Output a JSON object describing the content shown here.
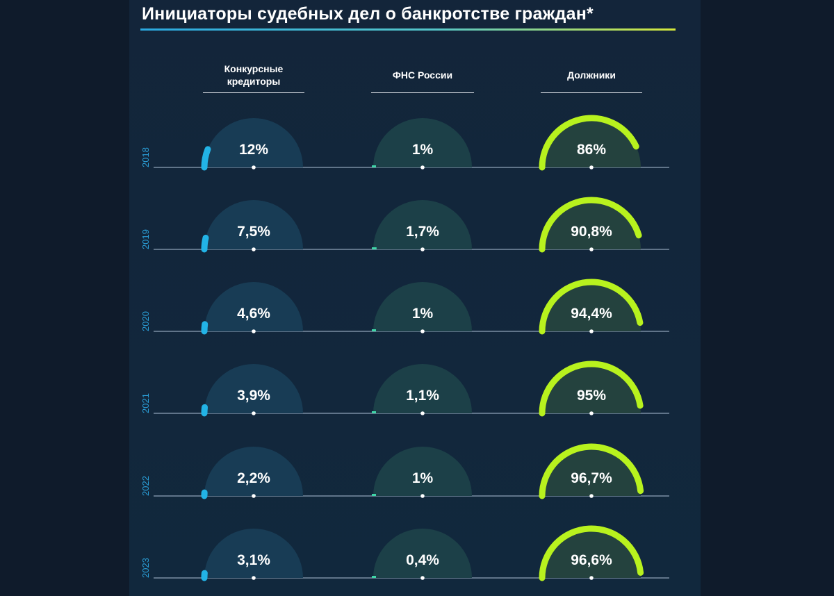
{
  "title": "Инициаторы судебных дел о банкротстве граждан*",
  "chart_data": {
    "type": "gauge",
    "title": "Инициаторы судебных дел о банкротстве граждан*",
    "years": [
      "2018",
      "2019",
      "2020",
      "2021",
      "2022",
      "2023"
    ],
    "series": [
      {
        "name": "Конкурсные кредиторы",
        "values": [
          12,
          7.5,
          4.6,
          3.9,
          2.2,
          3.1
        ],
        "labels": [
          "12%",
          "7,5%",
          "4,6%",
          "3,9%",
          "2,2%",
          "3,1%"
        ],
        "color": "#22b3e6",
        "track": "#183c55"
      },
      {
        "name": "ФНС России",
        "values": [
          1,
          1.7,
          1,
          1.1,
          1,
          0.4
        ],
        "labels": [
          "1%",
          "1,7%",
          "1%",
          "1,1%",
          "1%",
          "0,4%"
        ],
        "color": "#3fd6a8",
        "track": "#1c4048"
      },
      {
        "name": "Должники",
        "values": [
          86,
          90.8,
          94.4,
          95,
          96.7,
          96.6
        ],
        "labels": [
          "86%",
          "90,8%",
          "94,4%",
          "95%",
          "96,7%",
          "96,6%"
        ],
        "color": "#b8f21e",
        "track": "#24423e"
      }
    ],
    "ylim": [
      0,
      100
    ]
  }
}
